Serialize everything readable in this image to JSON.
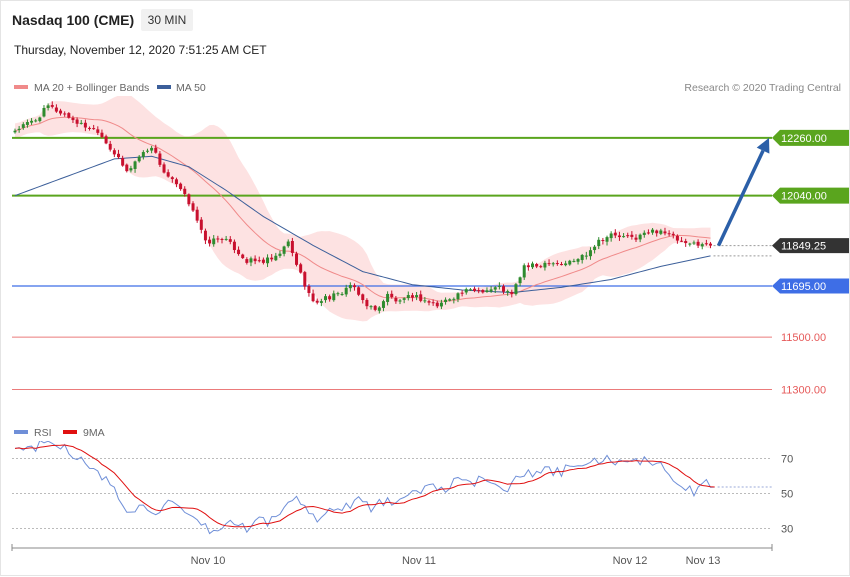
{
  "header": {
    "instrument": "Nasdaq 100 (CME)",
    "timeframe": "30 MIN",
    "datetime": "Thursday, November 12, 2020 7:51:25 AM CET"
  },
  "legend": {
    "ma20_label": "MA 20 + Bollinger Bands",
    "ma50_label": "MA 50",
    "copyright": "Research © 2020 Trading Central"
  },
  "colors": {
    "ma20": "#f08a8a",
    "ma50": "#3c5f9a",
    "band_fill": "#fde2e2",
    "bull": "#2e8b2e",
    "bear": "#c8102e",
    "resistance": "#5aa51e",
    "pivot": "#3e6ee6",
    "support": "#e65a5a",
    "last_price": "#333333",
    "arrow": "#2b5fa8",
    "rsi": "#6f8fd8",
    "rsi_ma": "#e01010"
  },
  "x_axis": {
    "labels": [
      "Nov 10",
      "Nov 11",
      "Nov 12",
      "Nov 13"
    ]
  },
  "chart_data": [
    {
      "type": "candlestick",
      "price_range": [
        11180,
        12420
      ],
      "levels": [
        {
          "label": "12260.00",
          "value": 12260,
          "kind": "resistance"
        },
        {
          "label": "12040.00",
          "value": 12040,
          "kind": "resistance"
        },
        {
          "label": "11849.25",
          "value": 11849.25,
          "kind": "last"
        },
        {
          "label": "11695.00",
          "value": 11695,
          "kind": "pivot"
        },
        {
          "label": "11500.00",
          "value": 11500,
          "kind": "support"
        },
        {
          "label": "11300.00",
          "value": 11300,
          "kind": "support"
        }
      ],
      "projection": {
        "from": 11849.25,
        "to": 12260
      },
      "close_anchors": [
        [
          0,
          12290
        ],
        [
          5,
          12330
        ],
        [
          8,
          12380
        ],
        [
          12,
          12350
        ],
        [
          16,
          12310
        ],
        [
          20,
          12290
        ],
        [
          24,
          12200
        ],
        [
          27,
          12130
        ],
        [
          30,
          12190
        ],
        [
          33,
          12230
        ],
        [
          36,
          12130
        ],
        [
          40,
          12060
        ],
        [
          43,
          11990
        ],
        [
          46,
          11860
        ],
        [
          50,
          11880
        ],
        [
          53,
          11840
        ],
        [
          56,
          11790
        ],
        [
          60,
          11790
        ],
        [
          63,
          11800
        ],
        [
          66,
          11860
        ],
        [
          69,
          11740
        ],
        [
          72,
          11630
        ],
        [
          75,
          11650
        ],
        [
          78,
          11660
        ],
        [
          81,
          11700
        ],
        [
          84,
          11640
        ],
        [
          87,
          11600
        ],
        [
          90,
          11660
        ],
        [
          93,
          11630
        ],
        [
          96,
          11660
        ],
        [
          99,
          11640
        ],
        [
          102,
          11620
        ],
        [
          105,
          11650
        ],
        [
          108,
          11670
        ],
        [
          111,
          11680
        ],
        [
          114,
          11680
        ],
        [
          117,
          11690
        ],
        [
          120,
          11660
        ],
        [
          123,
          11770
        ],
        [
          126,
          11770
        ],
        [
          129,
          11790
        ],
        [
          132,
          11780
        ],
        [
          135,
          11790
        ],
        [
          138,
          11820
        ],
        [
          141,
          11870
        ],
        [
          144,
          11890
        ],
        [
          147,
          11880
        ],
        [
          150,
          11880
        ],
        [
          153,
          11900
        ],
        [
          156,
          11910
        ],
        [
          159,
          11880
        ],
        [
          162,
          11850
        ],
        [
          165,
          11860
        ],
        [
          168,
          11849.25
        ]
      ],
      "ma50_anchors": [
        [
          0,
          12040
        ],
        [
          12,
          12110
        ],
        [
          24,
          12180
        ],
        [
          33,
          12190
        ],
        [
          42,
          12150
        ],
        [
          51,
          12060
        ],
        [
          60,
          11960
        ],
        [
          72,
          11850
        ],
        [
          84,
          11750
        ],
        [
          96,
          11700
        ],
        [
          108,
          11680
        ],
        [
          120,
          11670
        ],
        [
          132,
          11690
        ],
        [
          144,
          11720
        ],
        [
          156,
          11770
        ],
        [
          168,
          11810
        ]
      ]
    },
    {
      "type": "line",
      "name": "RSI",
      "ylim": [
        20,
        80
      ],
      "y_ticks": [
        70,
        50,
        30
      ],
      "rsi_anchors": [
        [
          0,
          75
        ],
        [
          5,
          77
        ],
        [
          9,
          79
        ],
        [
          12,
          77
        ],
        [
          15,
          71
        ],
        [
          19,
          62
        ],
        [
          22,
          58
        ],
        [
          25,
          48
        ],
        [
          28,
          38
        ],
        [
          31,
          44
        ],
        [
          34,
          40
        ],
        [
          37,
          44
        ],
        [
          40,
          40
        ],
        [
          43,
          34
        ],
        [
          46,
          30
        ],
        [
          49,
          28
        ],
        [
          52,
          34
        ],
        [
          56,
          30
        ],
        [
          59,
          35
        ],
        [
          62,
          34
        ],
        [
          65,
          42
        ],
        [
          68,
          48
        ],
        [
          71,
          38
        ],
        [
          74,
          36
        ],
        [
          77,
          42
        ],
        [
          80,
          43
        ],
        [
          83,
          47
        ],
        [
          86,
          41
        ],
        [
          89,
          46
        ],
        [
          92,
          43
        ],
        [
          95,
          48
        ],
        [
          98,
          52
        ],
        [
          101,
          55
        ],
        [
          104,
          53
        ],
        [
          107,
          57
        ],
        [
          110,
          55
        ],
        [
          113,
          58
        ],
        [
          116,
          57
        ],
        [
          119,
          53
        ],
        [
          122,
          62
        ],
        [
          125,
          60
        ],
        [
          128,
          63
        ],
        [
          131,
          62
        ],
        [
          134,
          64
        ],
        [
          137,
          66
        ],
        [
          140,
          68
        ],
        [
          143,
          70
        ],
        [
          146,
          68
        ],
        [
          149,
          66
        ],
        [
          152,
          70
        ],
        [
          155,
          68
        ],
        [
          158,
          62
        ],
        [
          161,
          54
        ],
        [
          164,
          50
        ],
        [
          167,
          56
        ],
        [
          169,
          52
        ]
      ]
    }
  ]
}
